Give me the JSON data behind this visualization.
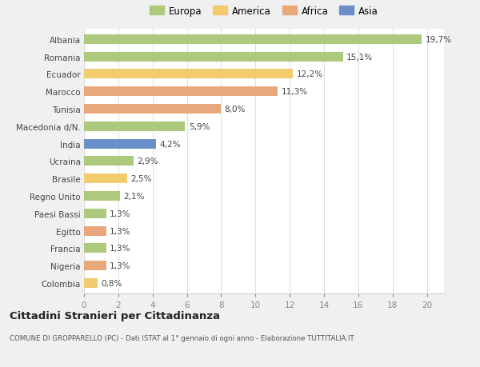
{
  "categories": [
    "Albania",
    "Romania",
    "Ecuador",
    "Marocco",
    "Tunisia",
    "Macedonia d/N.",
    "India",
    "Ucraina",
    "Brasile",
    "Regno Unito",
    "Paesi Bassi",
    "Egitto",
    "Francia",
    "Nigeria",
    "Colombia"
  ],
  "values": [
    19.7,
    15.1,
    12.2,
    11.3,
    8.0,
    5.9,
    4.2,
    2.9,
    2.5,
    2.1,
    1.3,
    1.3,
    1.3,
    1.3,
    0.8
  ],
  "labels": [
    "19,7%",
    "15,1%",
    "12,2%",
    "11,3%",
    "8,0%",
    "5,9%",
    "4,2%",
    "2,9%",
    "2,5%",
    "2,1%",
    "1,3%",
    "1,3%",
    "1,3%",
    "1,3%",
    "0,8%"
  ],
  "continent": [
    "Europa",
    "Europa",
    "America",
    "Africa",
    "Africa",
    "Europa",
    "Asia",
    "Europa",
    "America",
    "Europa",
    "Europa",
    "Africa",
    "Europa",
    "Africa",
    "America"
  ],
  "colors": {
    "Europa": "#adc97e",
    "America": "#f2cb6e",
    "Africa": "#e8a87c",
    "Asia": "#6b8fc9"
  },
  "legend_order": [
    "Europa",
    "America",
    "Africa",
    "Asia"
  ],
  "title1": "Cittadini Stranieri per Cittadinanza",
  "title2": "COMUNE DI GROPPARELLO (PC) - Dati ISTAT al 1° gennaio di ogni anno - Elaborazione TUTTITALIA.IT",
  "xlim": [
    0,
    21
  ],
  "xticks": [
    0,
    2,
    4,
    6,
    8,
    10,
    12,
    14,
    16,
    18,
    20
  ],
  "background_color": "#f0f0f0",
  "bar_background": "#ffffff"
}
